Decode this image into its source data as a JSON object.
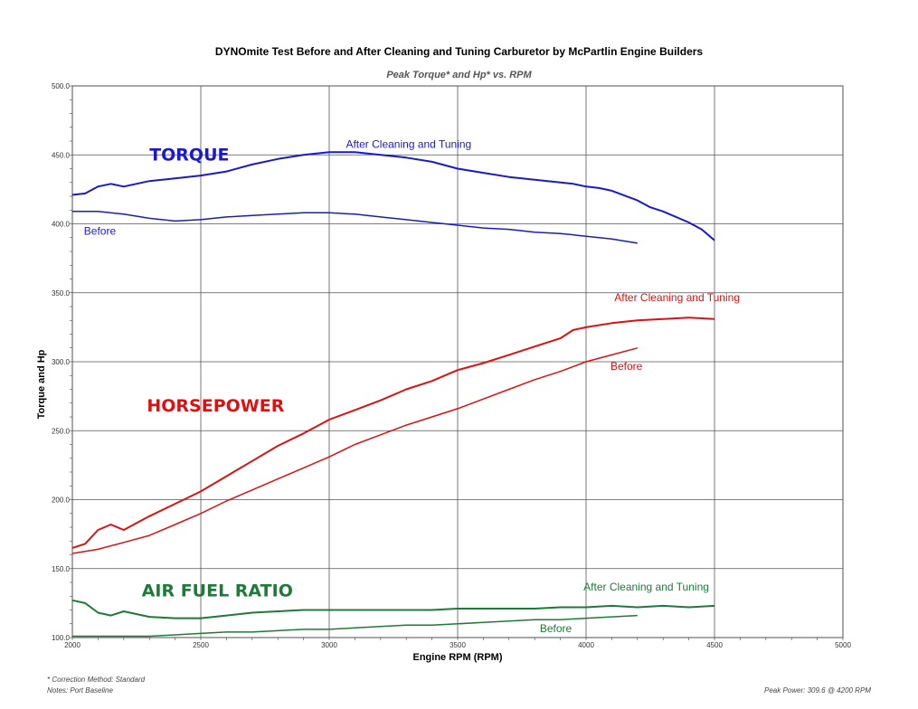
{
  "title": "DYNOmite Test Before and After Cleaning and Tuning Carburetor by McPartlin Engine Builders",
  "subtitle": "Peak Torque* and Hp* vs. RPM",
  "footnotes": {
    "correction": "* Correction Method: Standard",
    "notes": "Notes: Port Baseline",
    "peak": "Peak Power: 309.6  @ 4200 RPM"
  },
  "colors": {
    "torque": "#1a1acc",
    "horsepower": "#dd1111",
    "afr": "#1e7a3a",
    "grid": "#555555"
  },
  "chart_data": {
    "type": "line",
    "xlabel": "Engine RPM (RPM)",
    "ylabel": "Torque and Hp",
    "xlim": [
      2000,
      5000
    ],
    "ylim": [
      100,
      500
    ],
    "x_ticks": [
      "2000",
      "2500",
      "3000",
      "3500",
      "4000",
      "4500",
      "5000"
    ],
    "y_ticks": [
      "100.0",
      "150.0",
      "200.0",
      "250.0",
      "300.0",
      "350.0",
      "400.0",
      "450.0",
      "500.0"
    ],
    "grid": true,
    "group_labels": {
      "torque": "TORQUE",
      "horsepower": "HORSEPOWER",
      "afr": "AIR FUEL RATIO"
    },
    "series": [
      {
        "group": "torque",
        "name": "After Cleaning and Tuning",
        "width": 2,
        "x": [
          2000,
          2050,
          2100,
          2150,
          2200,
          2300,
          2400,
          2500,
          2600,
          2700,
          2800,
          2900,
          3000,
          3100,
          3200,
          3300,
          3400,
          3500,
          3600,
          3700,
          3800,
          3900,
          3950,
          4000,
          4050,
          4100,
          4200,
          4250,
          4300,
          4400,
          4450,
          4500
        ],
        "y": [
          421,
          422,
          427,
          429,
          427,
          431,
          433,
          435,
          438,
          443,
          447,
          450,
          452,
          452,
          450,
          448,
          445,
          440,
          437,
          434,
          432,
          430,
          429,
          427,
          426,
          424,
          417,
          412,
          409,
          401,
          396,
          388
        ]
      },
      {
        "group": "torque",
        "name": "Before",
        "width": 1.5,
        "x": [
          2000,
          2100,
          2200,
          2300,
          2400,
          2500,
          2600,
          2700,
          2800,
          2900,
          3000,
          3100,
          3200,
          3300,
          3400,
          3500,
          3600,
          3700,
          3800,
          3900,
          4000,
          4100,
          4200
        ],
        "y": [
          409,
          409,
          407,
          404,
          402,
          403,
          405,
          406,
          407,
          408,
          408,
          407,
          405,
          403,
          401,
          399,
          397,
          396,
          394,
          393,
          391,
          389,
          386
        ]
      },
      {
        "group": "horsepower",
        "name": "After Cleaning and Tuning",
        "width": 2,
        "x": [
          2000,
          2050,
          2100,
          2150,
          2200,
          2300,
          2400,
          2500,
          2600,
          2700,
          2800,
          2900,
          3000,
          3100,
          3200,
          3300,
          3400,
          3500,
          3600,
          3700,
          3800,
          3900,
          3950,
          4000,
          4100,
          4200,
          4300,
          4400,
          4500
        ],
        "y": [
          165,
          168,
          178,
          182,
          178,
          188,
          197,
          206,
          217,
          228,
          239,
          248,
          258,
          265,
          272,
          280,
          286,
          294,
          299,
          305,
          311,
          317,
          323,
          325,
          328,
          330,
          331,
          332,
          331
        ]
      },
      {
        "group": "horsepower",
        "name": "Before",
        "width": 1.5,
        "x": [
          2000,
          2100,
          2200,
          2300,
          2400,
          2500,
          2600,
          2700,
          2800,
          2900,
          3000,
          3100,
          3200,
          3300,
          3400,
          3500,
          3600,
          3700,
          3800,
          3900,
          4000,
          4100,
          4200
        ],
        "y": [
          161,
          164,
          169,
          174,
          182,
          190,
          199,
          207,
          215,
          223,
          231,
          240,
          247,
          254,
          260,
          266,
          273,
          280,
          287,
          293,
          300,
          305,
          310
        ]
      },
      {
        "group": "afr",
        "name": "After Cleaning and Tuning",
        "width": 2,
        "x": [
          2000,
          2050,
          2100,
          2150,
          2200,
          2300,
          2400,
          2500,
          2600,
          2700,
          2800,
          2900,
          3000,
          3100,
          3200,
          3300,
          3400,
          3500,
          3600,
          3700,
          3800,
          3900,
          4000,
          4100,
          4200,
          4300,
          4400,
          4500
        ],
        "y": [
          127,
          125,
          118,
          116,
          119,
          115,
          114,
          114,
          116,
          118,
          119,
          120,
          120,
          120,
          120,
          120,
          120,
          121,
          121,
          121,
          121,
          122,
          122,
          123,
          122,
          123,
          122,
          123
        ]
      },
      {
        "group": "afr",
        "name": "Before",
        "width": 1.5,
        "x": [
          2000,
          2100,
          2200,
          2300,
          2400,
          2500,
          2600,
          2700,
          2800,
          2900,
          3000,
          3100,
          3200,
          3300,
          3400,
          3500,
          3600,
          3700,
          3800,
          3900,
          4000,
          4100,
          4200
        ],
        "y": [
          101,
          101,
          101,
          101,
          102,
          103,
          104,
          104,
          105,
          106,
          106,
          107,
          108,
          109,
          109,
          110,
          111,
          112,
          113,
          113,
          114,
          115,
          116
        ]
      }
    ]
  }
}
